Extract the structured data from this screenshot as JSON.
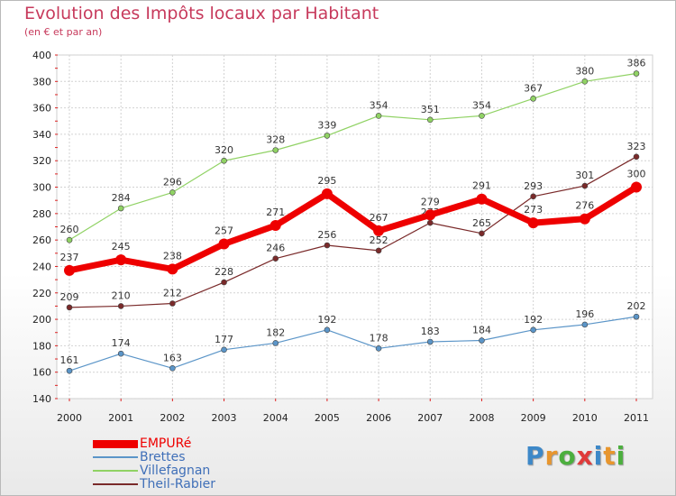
{
  "header": {
    "title": "Evolution des Impôts locaux par Habitant",
    "subtitle": "(en € et par an)"
  },
  "logo": {
    "letters": [
      "P",
      "r",
      "o",
      "x",
      "i",
      "t",
      "i"
    ],
    "colors": [
      "#3d88c8",
      "#e8962e",
      "#4caf3e",
      "#e03a3a",
      "#3d88c8",
      "#e8962e",
      "#4caf3e"
    ]
  },
  "chart_data": {
    "type": "line",
    "title": "Evolution des Impôts locaux par Habitant",
    "subtitle": "(en € et par an)",
    "x": [
      "2000",
      "2001",
      "2002",
      "2003",
      "2004",
      "2005",
      "2006",
      "2007",
      "2008",
      "2009",
      "2010",
      "2011"
    ],
    "ylim": [
      140,
      400
    ],
    "yticks": [
      140,
      160,
      180,
      200,
      220,
      240,
      260,
      280,
      300,
      320,
      340,
      360,
      380,
      400
    ],
    "grid": true,
    "legend_position": "bottom-left",
    "series": [
      {
        "name": "EMPURé",
        "values": [
          237,
          245,
          238,
          257,
          271,
          295,
          267,
          279,
          291,
          273,
          276,
          300
        ],
        "color": "#ee0000"
      },
      {
        "name": "Brettes",
        "values": [
          161,
          174,
          163,
          177,
          182,
          192,
          178,
          183,
          184,
          192,
          196,
          202
        ],
        "color": "#5b95c8"
      },
      {
        "name": "Villefagnan",
        "values": [
          260,
          284,
          296,
          320,
          328,
          339,
          354,
          351,
          354,
          367,
          380,
          386
        ],
        "color": "#90d264"
      },
      {
        "name": "Theil-Rabier",
        "values": [
          209,
          210,
          212,
          228,
          246,
          256,
          252,
          273,
          265,
          293,
          301,
          323
        ],
        "color": "#7a2a2a"
      }
    ]
  }
}
